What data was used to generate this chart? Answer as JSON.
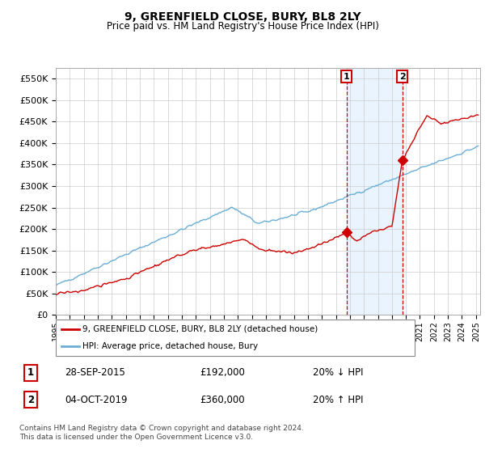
{
  "title": "9, GREENFIELD CLOSE, BURY, BL8 2LY",
  "subtitle": "Price paid vs. HM Land Registry's House Price Index (HPI)",
  "ytick_values": [
    0,
    50000,
    100000,
    150000,
    200000,
    250000,
    300000,
    350000,
    400000,
    450000,
    500000,
    550000
  ],
  "ylim": [
    0,
    575000
  ],
  "xlim_start": 1995.0,
  "xlim_end": 2025.3,
  "hpi_color": "#6baed6",
  "price_color": "#cc0000",
  "sale1_date": 2015.75,
  "sale1_price": 192000,
  "sale2_date": 2019.75,
  "sale2_price": 360000,
  "legend_label1": "9, GREENFIELD CLOSE, BURY, BL8 2LY (detached house)",
  "legend_label2": "HPI: Average price, detached house, Bury",
  "annotation1_label": "1",
  "annotation1_date": "28-SEP-2015",
  "annotation1_price": "£192,000",
  "annotation1_hpi": "20% ↓ HPI",
  "annotation2_label": "2",
  "annotation2_date": "04-OCT-2019",
  "annotation2_price": "£360,000",
  "annotation2_hpi": "20% ↑ HPI",
  "footer": "Contains HM Land Registry data © Crown copyright and database right 2024.\nThis data is licensed under the Open Government Licence v3.0.",
  "background_color": "#ffffff",
  "grid_color": "#cccccc",
  "shaded_region_color": "#ddeeff"
}
